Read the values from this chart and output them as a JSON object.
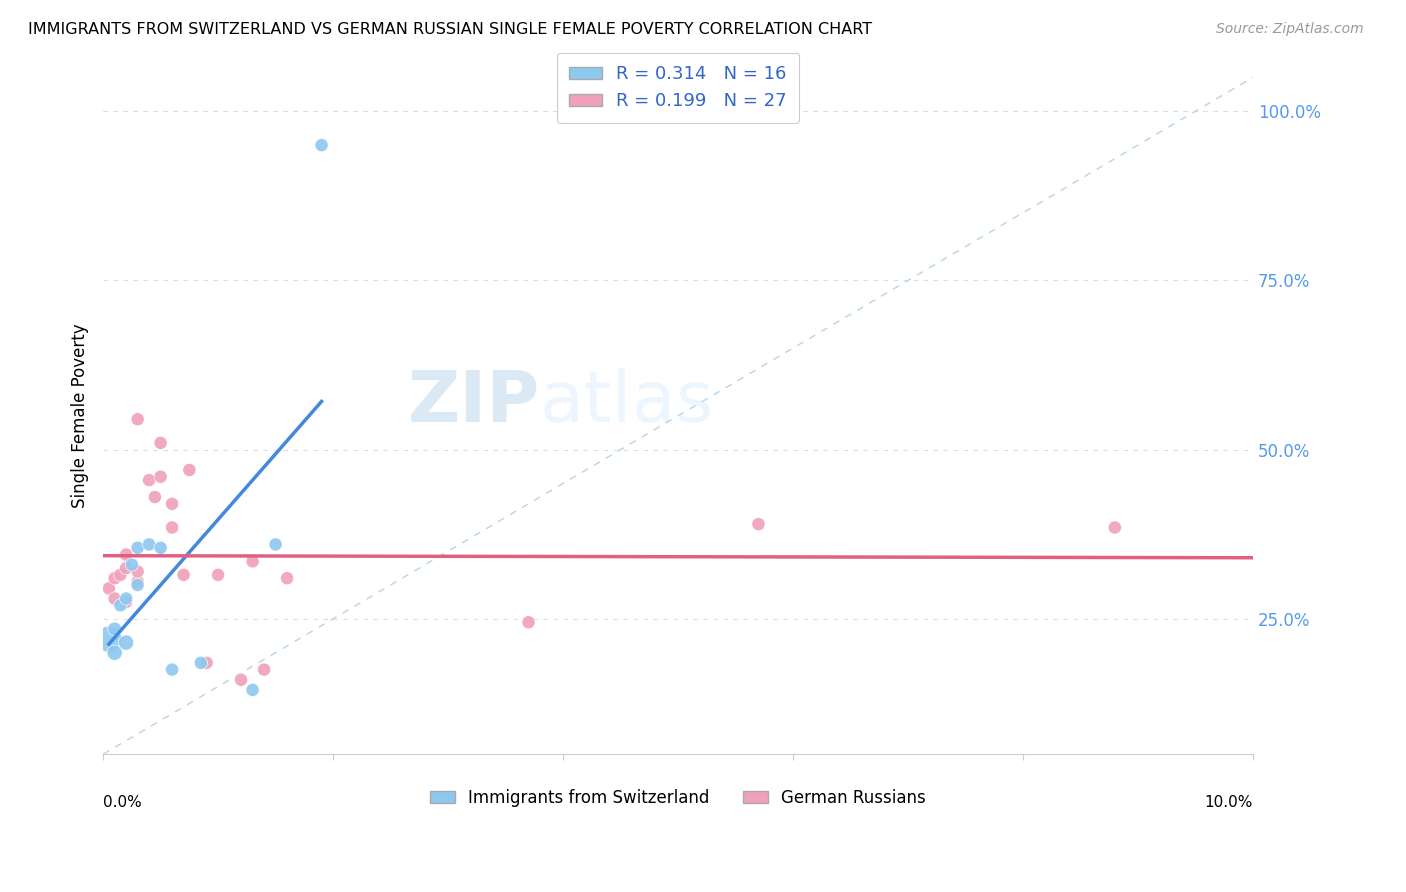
{
  "title": "IMMIGRANTS FROM SWITZERLAND VS GERMAN RUSSIAN SINGLE FEMALE POVERTY CORRELATION CHART",
  "source": "Source: ZipAtlas.com",
  "ylabel": "Single Female Poverty",
  "right_yticks": [
    "100.0%",
    "75.0%",
    "50.0%",
    "25.0%"
  ],
  "right_ytick_vals": [
    1.0,
    0.75,
    0.5,
    0.25
  ],
  "xlim": [
    0.0,
    0.1
  ],
  "ylim": [
    0.05,
    1.05
  ],
  "r1": 0.314,
  "n1": 16,
  "r2": 0.199,
  "n2": 27,
  "color_swiss": "#8cc8f0",
  "color_german": "#f0a0b8",
  "color_swiss_line": "#4488dd",
  "color_german_line": "#e06080",
  "color_diag_line": "#b8d4e8",
  "legend_labels": [
    "Immigrants from Switzerland",
    "German Russians"
  ],
  "swiss_x": [
    0.0005,
    0.001,
    0.001,
    0.0015,
    0.002,
    0.002,
    0.0025,
    0.003,
    0.003,
    0.004,
    0.005,
    0.006,
    0.0085,
    0.013,
    0.015,
    0.019
  ],
  "swiss_y": [
    0.22,
    0.2,
    0.235,
    0.27,
    0.215,
    0.28,
    0.33,
    0.3,
    0.355,
    0.36,
    0.355,
    0.175,
    0.185,
    0.145,
    0.36,
    0.95
  ],
  "swiss_s": [
    350,
    120,
    100,
    90,
    120,
    90,
    90,
    90,
    90,
    90,
    90,
    90,
    90,
    90,
    90,
    90
  ],
  "german_x": [
    0.0005,
    0.001,
    0.001,
    0.0015,
    0.002,
    0.002,
    0.002,
    0.003,
    0.003,
    0.003,
    0.004,
    0.0045,
    0.005,
    0.005,
    0.006,
    0.006,
    0.007,
    0.0075,
    0.009,
    0.01,
    0.012,
    0.013,
    0.014,
    0.016,
    0.037,
    0.057,
    0.088
  ],
  "german_y": [
    0.295,
    0.28,
    0.31,
    0.315,
    0.275,
    0.325,
    0.345,
    0.305,
    0.32,
    0.545,
    0.455,
    0.43,
    0.46,
    0.51,
    0.385,
    0.42,
    0.315,
    0.47,
    0.185,
    0.315,
    0.16,
    0.335,
    0.175,
    0.31,
    0.245,
    0.39,
    0.385
  ],
  "german_s": [
    90,
    90,
    90,
    90,
    90,
    90,
    90,
    90,
    90,
    90,
    90,
    90,
    90,
    90,
    90,
    90,
    90,
    90,
    90,
    90,
    90,
    90,
    90,
    90,
    90,
    90,
    90
  ]
}
